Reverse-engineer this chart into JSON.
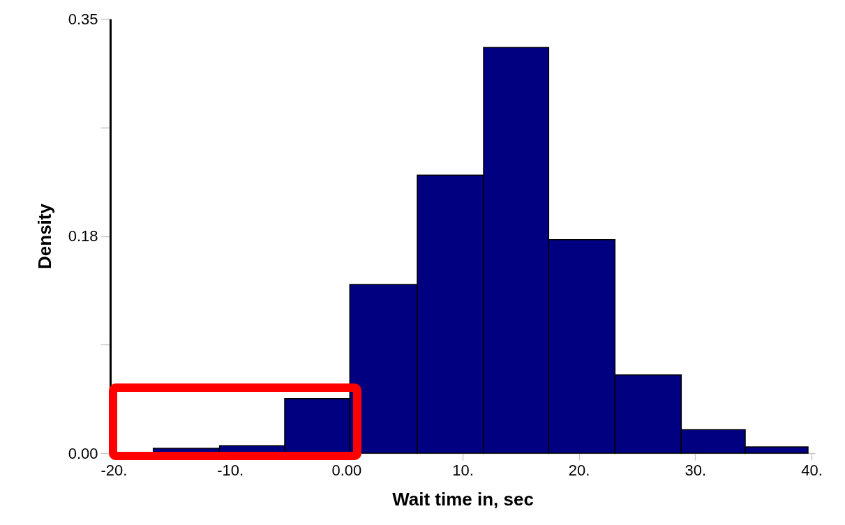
{
  "chart_data": {
    "type": "histogram",
    "xlabel": "Wait time in, sec",
    "ylabel": "Density",
    "bins": [
      -16.6,
      -10.9,
      -5.3,
      0.3,
      6.1,
      11.8,
      17.4,
      23.1,
      28.8,
      34.3,
      39.7
    ],
    "values": [
      0.004,
      0.006,
      0.044,
      0.136,
      0.224,
      0.327,
      0.172,
      0.063,
      0.019,
      0.005
    ],
    "color": "#000080",
    "xlim": [
      -20,
      40
    ],
    "xticks": [
      {
        "value": -20,
        "label": "-20."
      },
      {
        "value": -10,
        "label": "-10."
      },
      {
        "value": 0,
        "label": "0.00"
      },
      {
        "value": 10,
        "label": "10."
      },
      {
        "value": 20,
        "label": "20."
      },
      {
        "value": 30,
        "label": "30."
      },
      {
        "value": 40,
        "label": "40."
      }
    ],
    "ylim": [
      0,
      0.35
    ],
    "yticks": [
      {
        "value": 0,
        "label": "0.00"
      },
      {
        "value": 0.0875,
        "label": null
      },
      {
        "value": 0.175,
        "label": "0.18"
      },
      {
        "value": 0.2625,
        "label": null
      },
      0.35
    ],
    "grid": false
  }
}
